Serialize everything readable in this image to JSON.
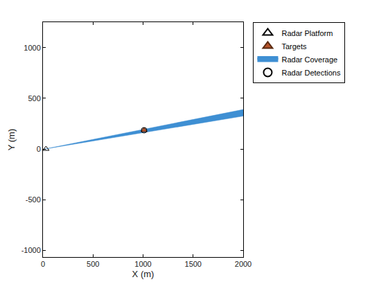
{
  "chart_data": {
    "type": "scatter",
    "xlabel": "X (m)",
    "ylabel": "Y (m)",
    "xlim": [
      0,
      2000
    ],
    "ylim": [
      -1068,
      1253
    ],
    "xticks": [
      0,
      500,
      1000,
      1500,
      2000
    ],
    "yticks": [
      -1000,
      -500,
      0,
      500,
      1000
    ],
    "legend": "outside right",
    "series": [
      {
        "name": "Radar Platform",
        "type": "scatter",
        "marker": "triangle-up-open",
        "color": "#000000",
        "x": [
          30
        ],
        "y": [
          0
        ]
      },
      {
        "name": "Targets",
        "type": "scatter",
        "marker": "triangle-up",
        "color": "#b5532a",
        "x": [
          1010
        ],
        "y": [
          185
        ]
      },
      {
        "name": "Radar Coverage",
        "type": "area",
        "color": "#3e8fd3",
        "x": [
          20,
          2000,
          2000,
          20
        ],
        "y": [
          0,
          390,
          325,
          0
        ]
      },
      {
        "name": "Radar Detections",
        "type": "scatter",
        "marker": "circle-open",
        "color": "#000000",
        "x": [
          1010
        ],
        "y": [
          185
        ]
      }
    ]
  }
}
